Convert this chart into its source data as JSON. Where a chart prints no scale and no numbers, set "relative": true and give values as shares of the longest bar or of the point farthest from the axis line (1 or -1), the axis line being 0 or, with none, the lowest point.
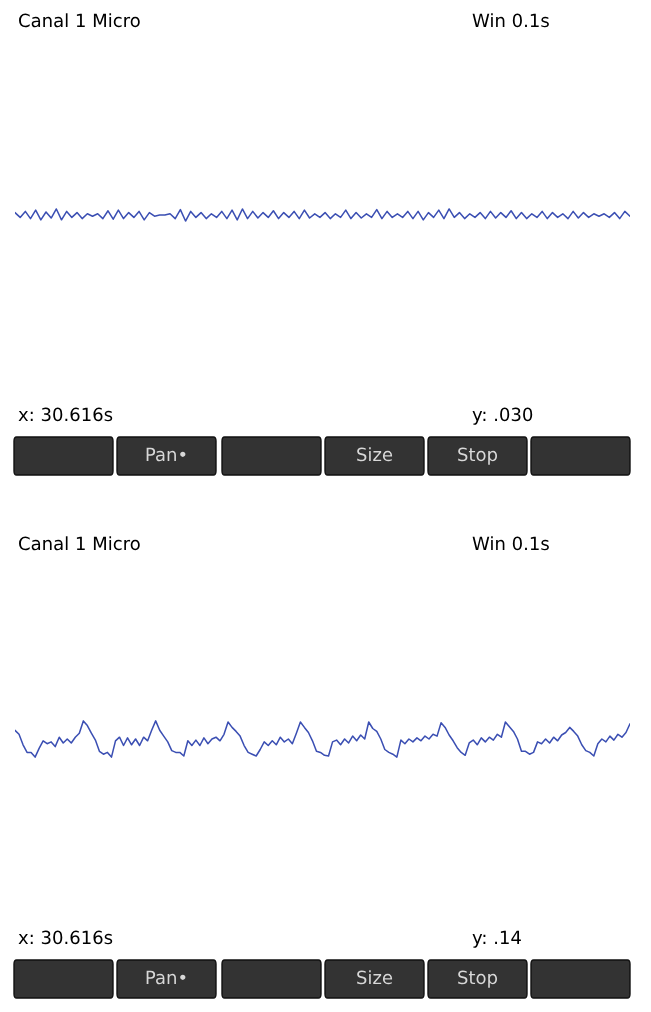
{
  "chart_data": [
    {
      "type": "line",
      "relative": true,
      "title": "Canal 1 Micro",
      "subtitle": "Win 0.1s",
      "annotations": [
        "x: 30.616s",
        "y: .030",
        "Pan•",
        "Size",
        "Stop"
      ],
      "categories": [
        null,
        null,
        null,
        null,
        null,
        null,
        null,
        null,
        null,
        null,
        null,
        null,
        null,
        null,
        null,
        null,
        null,
        null,
        null,
        null,
        null,
        null,
        null,
        null,
        null,
        null,
        null,
        null,
        null,
        null,
        null,
        null,
        null,
        null,
        null,
        null,
        null,
        null,
        null,
        null,
        null,
        null,
        null,
        null,
        null,
        null,
        null,
        null,
        null,
        null,
        null,
        null,
        null,
        null,
        null,
        null,
        null,
        null,
        null,
        null,
        null,
        null,
        null,
        null,
        null,
        null,
        null,
        null,
        null,
        null,
        null,
        null,
        null,
        null,
        null,
        null,
        null,
        null,
        null,
        null,
        null,
        null,
        null,
        null,
        null,
        null,
        null,
        null,
        null,
        null,
        null,
        null,
        null,
        null,
        null,
        null,
        null,
        null,
        null,
        null,
        null,
        null,
        null,
        null,
        null,
        null,
        null,
        null,
        null,
        null,
        null,
        null,
        null,
        null,
        null,
        null,
        null,
        null,
        null,
        null
      ],
      "series": [
        {
          "color": "#3b4fb3",
          "values": [
            0.7,
            0.3,
            0.8,
            0.2,
            0.9,
            0.1,
            0.75,
            0.25,
            1.0,
            0.1,
            0.8,
            0.3,
            0.7,
            0.2,
            0.6,
            0.4,
            0.6,
            0.2,
            0.85,
            0.15,
            0.9,
            0.2,
            0.7,
            0.3,
            0.8,
            0.1,
            0.7,
            0.4,
            0.5,
            0.5,
            0.6,
            0.2,
            0.95,
            0.0,
            0.8,
            0.3,
            0.7,
            0.2,
            0.6,
            0.3,
            0.8,
            0.2,
            0.9,
            0.1,
            1.0,
            0.2,
            0.8,
            0.25,
            0.7,
            0.3,
            0.85,
            0.2,
            0.7,
            0.3,
            0.8,
            0.2,
            0.9,
            0.25,
            0.6,
            0.3,
            0.7,
            0.2,
            0.6,
            0.3,
            0.9,
            0.2,
            0.7,
            0.25,
            0.6,
            0.3,
            0.95,
            0.2,
            0.8,
            0.3,
            0.6,
            0.3,
            0.8,
            0.2,
            0.8,
            0.1,
            0.7,
            0.3,
            0.9,
            0.2,
            1.0,
            0.3,
            0.7,
            0.2,
            0.6,
            0.3,
            0.7,
            0.2,
            0.8,
            0.25,
            0.7,
            0.3,
            0.85,
            0.2,
            0.7,
            0.2,
            0.6,
            0.3,
            0.8,
            0.2,
            0.7,
            0.3,
            0.6,
            0.2,
            0.8,
            0.25,
            0.7,
            0.3,
            0.6,
            0.4,
            0.6,
            0.3,
            0.7,
            0.2,
            0.8,
            0.4
          ]
        }
      ]
    },
    {
      "type": "line",
      "relative": true,
      "title": "Canal 1 Micro",
      "subtitle": "Win 0.1s",
      "annotations": [
        "x: 30.616s",
        "y: .14",
        "Pan•",
        "Size",
        "Stop"
      ],
      "categories": [
        null,
        null,
        null,
        null,
        null,
        null,
        null,
        null,
        null,
        null,
        null,
        null,
        null,
        null,
        null,
        null,
        null,
        null,
        null,
        null,
        null,
        null,
        null,
        null,
        null,
        null,
        null,
        null,
        null,
        null,
        null,
        null,
        null,
        null,
        null,
        null,
        null,
        null,
        null,
        null,
        null,
        null,
        null,
        null,
        null,
        null,
        null,
        null,
        null,
        null,
        null,
        null,
        null,
        null,
        null,
        null,
        null,
        null,
        null,
        null,
        null,
        null,
        null,
        null,
        null,
        null,
        null,
        null,
        null,
        null,
        null,
        null,
        null,
        null,
        null,
        null,
        null,
        null,
        null,
        null,
        null,
        null,
        null,
        null,
        null,
        null,
        null,
        null,
        null,
        null,
        null,
        null,
        null,
        null,
        null,
        null,
        null,
        null,
        null,
        null,
        null,
        null,
        null,
        null,
        null,
        null,
        null,
        null,
        null,
        null,
        null,
        null,
        null,
        null,
        null,
        null,
        null,
        null,
        null,
        null,
        null,
        null,
        null,
        null,
        null,
        null,
        null,
        null,
        null,
        null,
        null,
        null,
        null,
        null,
        null,
        null,
        null,
        null,
        null,
        null,
        null,
        null,
        null,
        null,
        null,
        null,
        null,
        null,
        null,
        null,
        null,
        null,
        null,
        null
      ],
      "series": [
        {
          "color": "#3b4fb3",
          "values": [
            0.74,
            0.63,
            0.34,
            0.13,
            0.13,
            0.0,
            0.24,
            0.45,
            0.37,
            0.42,
            0.29,
            0.55,
            0.39,
            0.5,
            0.39,
            0.55,
            0.66,
            1.0,
            0.87,
            0.66,
            0.47,
            0.16,
            0.08,
            0.13,
            0.0,
            0.45,
            0.55,
            0.32,
            0.53,
            0.34,
            0.5,
            0.32,
            0.55,
            0.45,
            0.74,
            1.0,
            0.74,
            0.58,
            0.42,
            0.18,
            0.13,
            0.13,
            0.03,
            0.45,
            0.32,
            0.47,
            0.32,
            0.53,
            0.37,
            0.5,
            0.55,
            0.45,
            0.63,
            0.97,
            0.82,
            0.71,
            0.58,
            0.32,
            0.13,
            0.08,
            0.03,
            0.21,
            0.42,
            0.32,
            0.45,
            0.34,
            0.55,
            0.42,
            0.5,
            0.37,
            0.66,
            0.97,
            0.82,
            0.68,
            0.45,
            0.16,
            0.13,
            0.05,
            0.03,
            0.42,
            0.47,
            0.34,
            0.5,
            0.39,
            0.58,
            0.45,
            0.61,
            0.5,
            0.97,
            0.79,
            0.71,
            0.5,
            0.21,
            0.13,
            0.08,
            0.0,
            0.47,
            0.37,
            0.5,
            0.42,
            0.53,
            0.45,
            0.58,
            0.5,
            0.63,
            0.58,
            0.95,
            0.82,
            0.61,
            0.45,
            0.26,
            0.13,
            0.05,
            0.39,
            0.47,
            0.34,
            0.53,
            0.42,
            0.55,
            0.47,
            0.63,
            0.55,
            0.97,
            0.84,
            0.71,
            0.5,
            0.16,
            0.16,
            0.08,
            0.13,
            0.42,
            0.37,
            0.5,
            0.39,
            0.55,
            0.45,
            0.61,
            0.68,
            0.82,
            0.71,
            0.58,
            0.34,
            0.18,
            0.13,
            0.03,
            0.37,
            0.5,
            0.42,
            0.58,
            0.47,
            0.63,
            0.55,
            0.68,
            0.92
          ]
        }
      ]
    }
  ]
}
